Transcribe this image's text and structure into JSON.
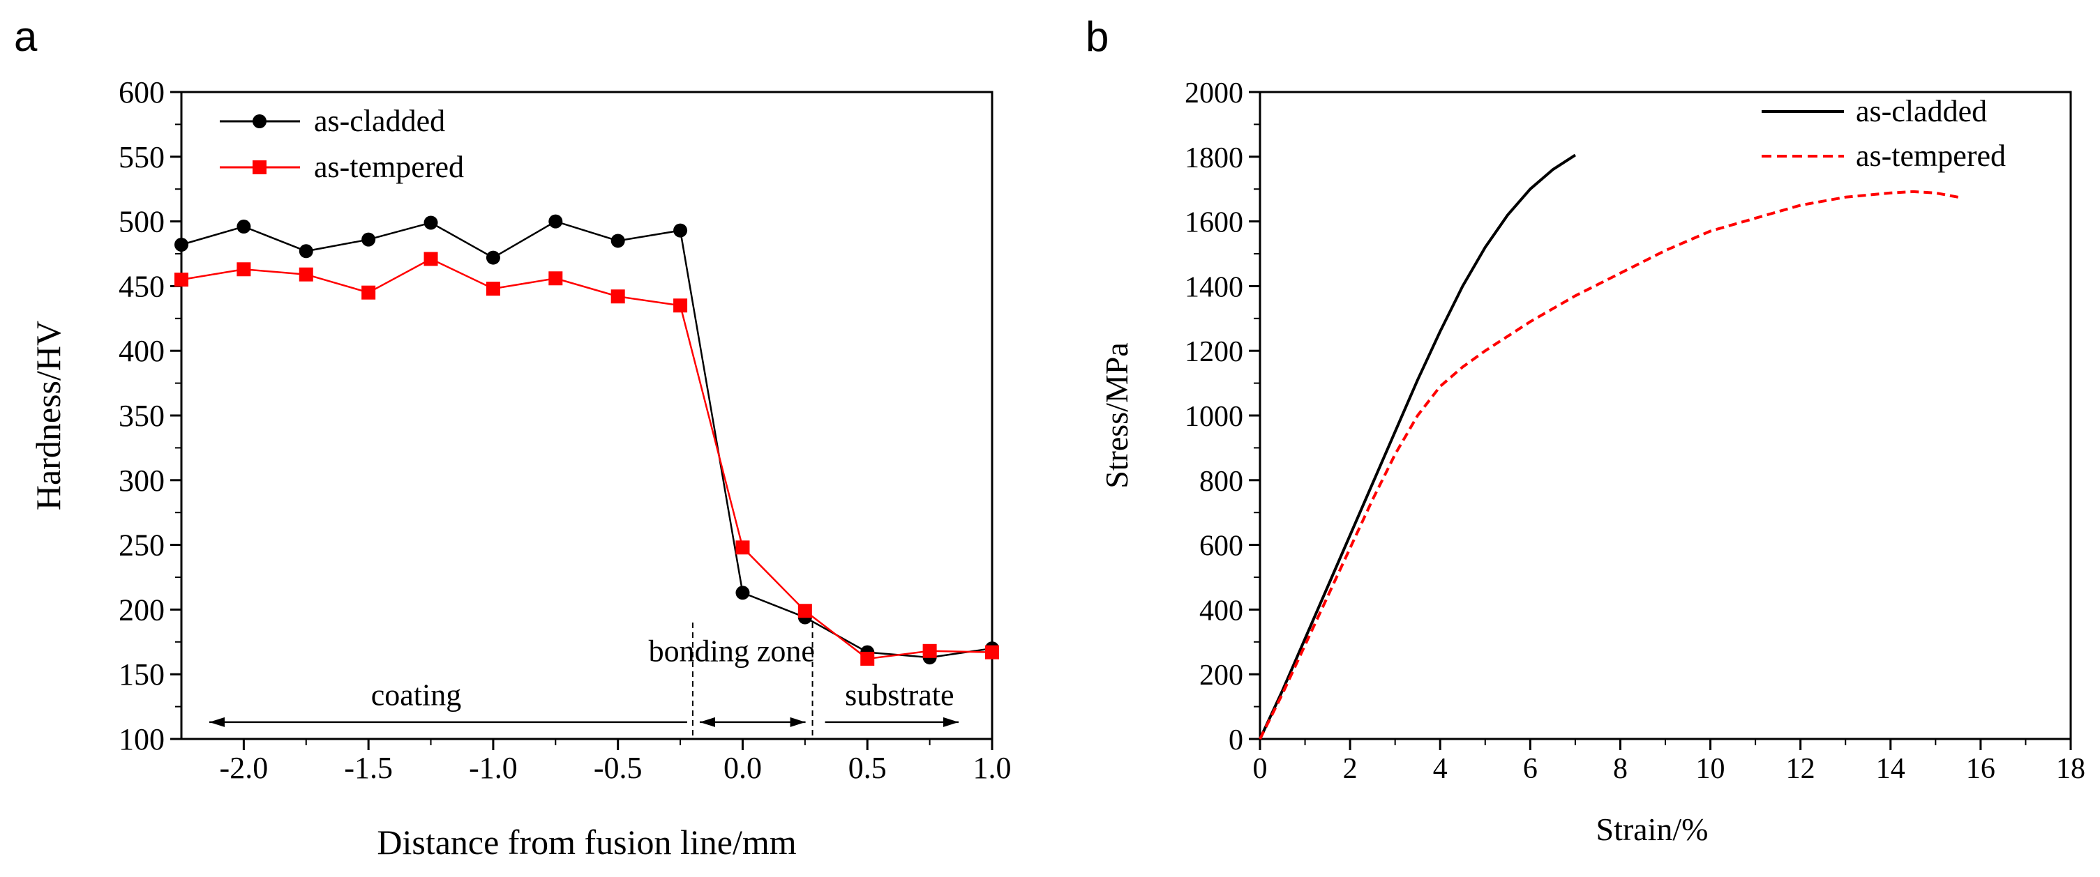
{
  "chart_data": [
    {
      "type": "line",
      "panel_label": "a",
      "xlabel": "Distance from fusion line/mm",
      "ylabel": "Hardness/HV",
      "xlim": [
        -2.25,
        1.0
      ],
      "ylim": [
        100,
        600
      ],
      "x_ticks": [
        -2.0,
        -1.5,
        -1.0,
        -0.5,
        0.0,
        0.5,
        1.0
      ],
      "x_tick_labels": [
        "-2.0",
        "-1.5",
        "-1.0",
        "-0.5",
        "0.0",
        "0.5",
        "1.0"
      ],
      "y_ticks": [
        100,
        150,
        200,
        250,
        300,
        350,
        400,
        450,
        500,
        550,
        600
      ],
      "y_tick_labels": [
        "100",
        "150",
        "200",
        "250",
        "300",
        "350",
        "400",
        "450",
        "500",
        "550",
        "600"
      ],
      "x": [
        -2.25,
        -2.0,
        -1.75,
        -1.5,
        -1.25,
        -1.0,
        -0.75,
        -0.5,
        -0.25,
        0.0,
        0.25,
        0.5,
        0.75,
        1.0
      ],
      "series": [
        {
          "name": "as-cladded",
          "color": "#000000",
          "marker": "circle",
          "values": [
            482,
            496,
            477,
            486,
            499,
            472,
            500,
            485,
            493,
            213,
            194,
            167,
            163,
            170
          ]
        },
        {
          "name": "as-tempered",
          "color": "#ff0000",
          "marker": "square",
          "values": [
            455,
            463,
            459,
            445,
            471,
            448,
            456,
            442,
            435,
            248,
            199,
            162,
            168,
            167
          ]
        }
      ],
      "zones": [
        {
          "label": "coating",
          "from": -2.25,
          "to": -0.2
        },
        {
          "label": "bonding zone",
          "from": -0.2,
          "to": 0.28
        },
        {
          "label": "substrate",
          "from": 0.28,
          "to": 1.0
        }
      ],
      "zone_boundaries": [
        -0.2,
        0.28
      ],
      "legend_position": "top-left"
    },
    {
      "type": "line",
      "panel_label": "b",
      "xlabel": "Strain/%",
      "ylabel": "Stress/MPa",
      "xlim": [
        0,
        18
      ],
      "ylim": [
        0,
        2000
      ],
      "x_ticks": [
        0,
        2,
        4,
        6,
        8,
        10,
        12,
        14,
        16,
        18
      ],
      "x_tick_labels": [
        "0",
        "2",
        "4",
        "6",
        "8",
        "10",
        "12",
        "14",
        "16",
        "18"
      ],
      "y_ticks": [
        0,
        200,
        400,
        600,
        800,
        1000,
        1200,
        1400,
        1600,
        1800,
        2000
      ],
      "y_tick_labels": [
        "0",
        "200",
        "400",
        "600",
        "800",
        "1000",
        "1200",
        "1400",
        "1600",
        "1800",
        "2000"
      ],
      "series": [
        {
          "name": "as-cladded",
          "color": "#000000",
          "style": "solid",
          "x": [
            0,
            0.5,
            1,
            1.5,
            2,
            2.5,
            3,
            3.5,
            4,
            4.5,
            5,
            5.5,
            6,
            6.5,
            7.0
          ],
          "y": [
            0,
            150,
            310,
            470,
            630,
            790,
            950,
            1110,
            1260,
            1400,
            1520,
            1620,
            1700,
            1760,
            1805
          ]
        },
        {
          "name": "as-tempered",
          "color": "#ff0000",
          "style": "dashed",
          "x": [
            0,
            0.5,
            1,
            1.5,
            2,
            2.5,
            3,
            3.5,
            4,
            4.5,
            5,
            6,
            7,
            8,
            9,
            10,
            11,
            12,
            13,
            14,
            14.5,
            15,
            15.5
          ],
          "y": [
            0,
            140,
            290,
            440,
            590,
            740,
            880,
            1000,
            1090,
            1150,
            1200,
            1290,
            1370,
            1440,
            1510,
            1570,
            1610,
            1650,
            1675,
            1688,
            1692,
            1688,
            1675
          ]
        }
      ],
      "legend_position": "top-right"
    }
  ]
}
